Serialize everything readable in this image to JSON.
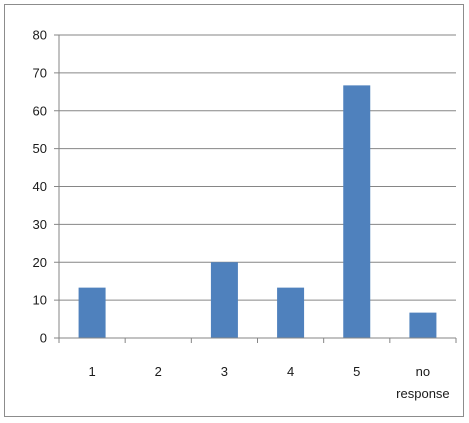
{
  "chart_data": {
    "type": "bar",
    "title": "",
    "xlabel": "",
    "ylabel": "",
    "categories": [
      "1",
      "2",
      "3",
      "4",
      "5",
      "no response"
    ],
    "category_lines": [
      [
        "1"
      ],
      [
        "2"
      ],
      [
        "3"
      ],
      [
        "4"
      ],
      [
        "5"
      ],
      [
        "no",
        "response"
      ]
    ],
    "values": [
      13.3,
      0,
      20,
      13.3,
      66.7,
      6.7
    ],
    "ylim": [
      0,
      80
    ],
    "yticks": [
      "0",
      "10",
      "20",
      "30",
      "40",
      "50",
      "60",
      "70",
      "80"
    ],
    "grid": true,
    "legend": "none",
    "bar_color": "#4f81bd",
    "grid_color": "#868686"
  }
}
